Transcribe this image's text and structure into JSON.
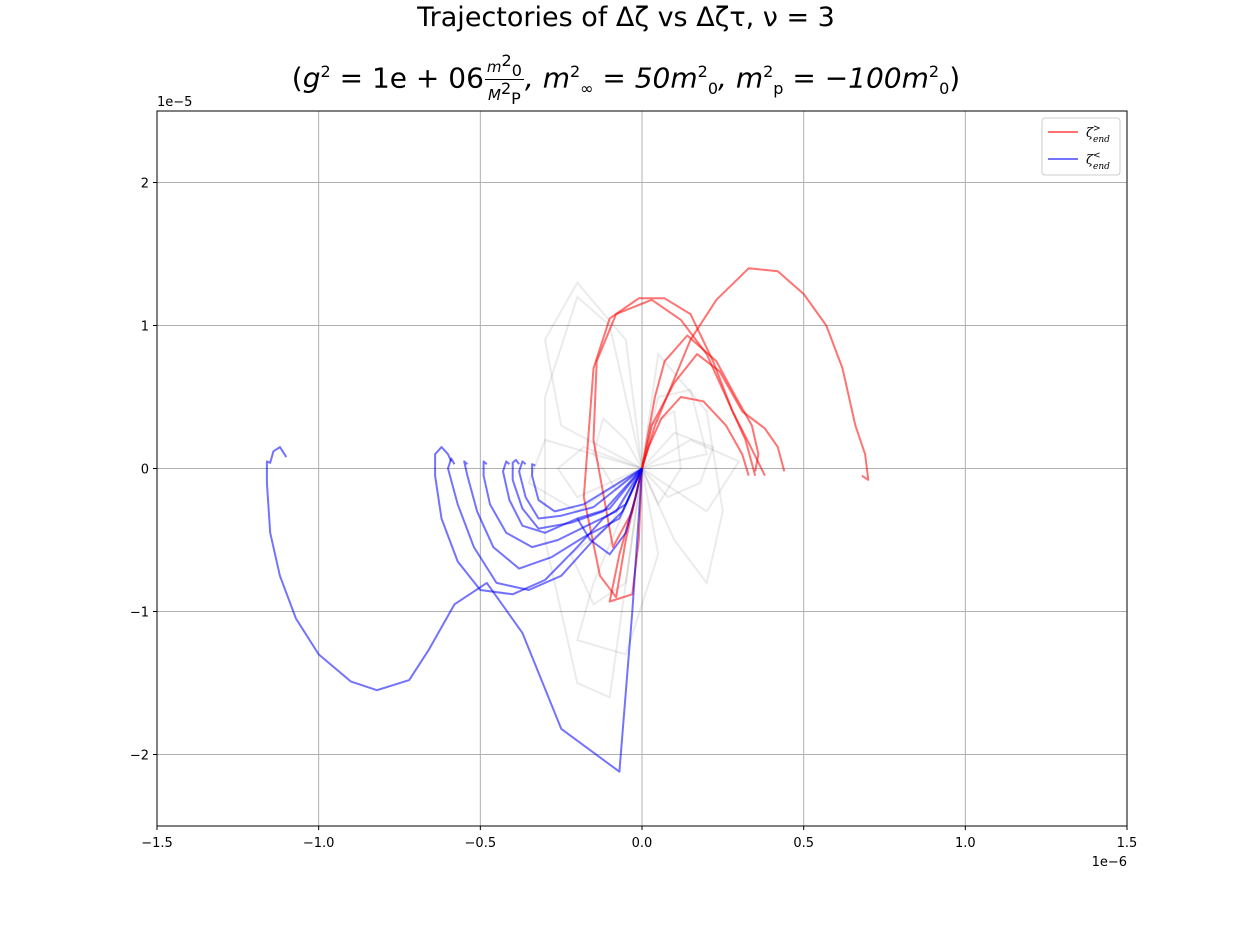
{
  "chart_data": {
    "type": "line",
    "title": "Trajectories of Δζ vs Δζτ, ν = 3",
    "subtitle_parts": {
      "open": "(",
      "g2_lhs": "g",
      "g2_eq": " = 1e + 06",
      "frac_num": "m",
      "frac_den": "M",
      "minf_lhs": ", m",
      "minf_rhs": " = 50m",
      "mp_lhs": ", m",
      "mp_rhs": " = −100m",
      "close": ")"
    },
    "xlim": [
      -1.5e-06,
      1.5e-06
    ],
    "ylim": [
      -2.5e-05,
      2.5e-05
    ],
    "x_multiplier": "1e−6",
    "y_multiplier": "1e−5",
    "x_ticks": [
      -1.5e-06,
      -1e-06,
      -5e-07,
      0.0,
      5e-07,
      1e-06,
      1.5e-06
    ],
    "x_tick_labels": [
      "−1.5",
      "−1.0",
      "−0.5",
      "0.0",
      "0.5",
      "1.0",
      "1.5"
    ],
    "y_ticks": [
      -2e-05,
      -1e-05,
      0,
      1e-05,
      2e-05
    ],
    "y_tick_labels": [
      "−2",
      "−1",
      "0",
      "1",
      "2"
    ],
    "grid": true,
    "legend_position": "top-right",
    "legend": [
      {
        "label": "ζ",
        "sup": ">",
        "sub": "end",
        "color": "#ff0000"
      },
      {
        "label": "ζ",
        "sup": "<",
        "sub": "end",
        "color": "#0000ff"
      }
    ],
    "colors": {
      "red_series": "#ff0000",
      "blue_series": "#0000ff",
      "gray_series": "#000000",
      "grid": "#b0b0b0"
    },
    "series": [
      {
        "group": "end-gt",
        "color": "#ff0000",
        "points": [
          [
            0,
            0
          ],
          [
            -5e-08,
            -5e-06
          ],
          [
            -8e-08,
            -9e-06
          ],
          [
            -1.3e-07,
            -7.5e-06
          ],
          [
            -1.8e-07,
            -2e-06
          ],
          [
            -1.5e-07,
            7e-06
          ],
          [
            -1e-07,
            1.05e-05
          ],
          [
            -1e-08,
            1.19e-05
          ],
          [
            7e-08,
            1.19e-05
          ],
          [
            1.5e-07,
            1.08e-05
          ],
          [
            2.2e-07,
            7.5e-06
          ],
          [
            2.8e-07,
            4e-06
          ],
          [
            3.3e-07,
            1.8e-06
          ],
          [
            3.8e-07,
            -5e-07
          ]
        ]
      },
      {
        "group": "end-gt",
        "color": "#ff0000",
        "points": [
          [
            0,
            0
          ],
          [
            -3e-08,
            -3e-06
          ],
          [
            -9e-08,
            -5.5e-06
          ],
          [
            -1.5e-07,
            2e-06
          ],
          [
            -1.4e-07,
            7.5e-06
          ],
          [
            -8e-08,
            1.08e-05
          ],
          [
            3e-08,
            1.18e-05
          ],
          [
            1.2e-07,
            1.04e-05
          ],
          [
            2e-07,
            8e-06
          ],
          [
            2.7e-07,
            4.5e-06
          ],
          [
            3.2e-07,
            2e-06
          ],
          [
            3.5e-07,
            -5e-07
          ]
        ]
      },
      {
        "group": "end-gt",
        "color": "#ff0000",
        "points": [
          [
            0,
            0
          ],
          [
            4e-08,
            3e-06
          ],
          [
            1.5e-07,
            9e-06
          ],
          [
            2.3e-07,
            1.18e-05
          ],
          [
            3.3e-07,
            1.4e-05
          ],
          [
            4.2e-07,
            1.38e-05
          ],
          [
            5e-07,
            1.22e-05
          ],
          [
            5.7e-07,
            1e-05
          ],
          [
            6.2e-07,
            7e-06
          ],
          [
            6.6e-07,
            3e-06
          ],
          [
            6.9e-07,
            1e-06
          ],
          [
            7e-07,
            -8e-07
          ],
          [
            6.8e-07,
            -5e-07
          ]
        ]
      },
      {
        "group": "end-gt",
        "color": "#ff0000",
        "points": [
          [
            0,
            0
          ],
          [
            2e-08,
            2.5e-06
          ],
          [
            4e-08,
            5e-06
          ],
          [
            7e-08,
            7.5e-06
          ],
          [
            1.4e-07,
            9.3e-06
          ],
          [
            2.3e-07,
            7.5e-06
          ],
          [
            2.9e-07,
            5e-06
          ],
          [
            3.4e-07,
            3e-06
          ],
          [
            3.6e-07,
            1e-06
          ],
          [
            3.5e-07,
            -2e-07
          ]
        ]
      },
      {
        "group": "end-gt",
        "color": "#ff0000",
        "points": [
          [
            0,
            0
          ],
          [
            3e-08,
            3e-06
          ],
          [
            1e-07,
            6e-06
          ],
          [
            1.7e-07,
            8e-06
          ],
          [
            2.4e-07,
            6.8e-06
          ],
          [
            3.1e-07,
            4e-06
          ],
          [
            3.8e-07,
            2.8e-06
          ],
          [
            4.2e-07,
            1.5e-06
          ],
          [
            4.4e-07,
            -2e-07
          ]
        ]
      },
      {
        "group": "end-gt",
        "color": "#ff0000",
        "points": [
          [
            0,
            0
          ],
          [
            2e-08,
            1.5e-06
          ],
          [
            6e-08,
            3.5e-06
          ],
          [
            1.2e-07,
            5e-06
          ],
          [
            1.9e-07,
            4.7e-06
          ],
          [
            2.6e-07,
            3e-06
          ],
          [
            3.1e-07,
            1e-06
          ],
          [
            3.3e-07,
            -5e-07
          ]
        ]
      },
      {
        "group": "end-gt",
        "color": "#ff0000",
        "points": [
          [
            0,
            0
          ],
          [
            -2e-08,
            -2e-06
          ],
          [
            -7e-08,
            -6e-06
          ],
          [
            -1e-07,
            -9.3e-06
          ],
          [
            -3e-08,
            -8.8e-06
          ],
          [
            -1e-08,
            -5e-06
          ],
          [
            0,
            0
          ]
        ]
      },
      {
        "group": "end-lt",
        "color": "#0000ff",
        "points": [
          [
            0,
            0
          ],
          [
            -3e-08,
            -1e-05
          ],
          [
            -7e-08,
            -2.12e-05
          ],
          [
            -2.5e-07,
            -1.82e-05
          ],
          [
            -3.7e-07,
            -1.15e-05
          ],
          [
            -4.8e-07,
            -8e-06
          ],
          [
            -5.8e-07,
            -9.5e-06
          ],
          [
            -6.6e-07,
            -1.27e-05
          ],
          [
            -7.2e-07,
            -1.48e-05
          ],
          [
            -8.2e-07,
            -1.55e-05
          ],
          [
            -9e-07,
            -1.49e-05
          ],
          [
            -1e-06,
            -1.3e-05
          ],
          [
            -1.07e-06,
            -1.05e-05
          ],
          [
            -1.12e-06,
            -7.5e-06
          ],
          [
            -1.15e-06,
            -4.5e-06
          ],
          [
            -1.16e-06,
            -1e-06
          ],
          [
            -1.16e-06,
            5e-07
          ],
          [
            -1.15e-06,
            4e-07
          ],
          [
            -1.14e-06,
            1.2e-06
          ],
          [
            -1.12e-06,
            1.5e-06
          ],
          [
            -1.1e-06,
            8e-07
          ]
        ]
      },
      {
        "group": "end-lt",
        "color": "#0000ff",
        "points": [
          [
            0,
            0
          ],
          [
            -5e-08,
            -2.5e-06
          ],
          [
            -1.2e-07,
            -3.5e-06
          ],
          [
            -2e-07,
            -5.5e-06
          ],
          [
            -3e-07,
            -7.8e-06
          ],
          [
            -4e-07,
            -8.8e-06
          ],
          [
            -5e-07,
            -8.5e-06
          ],
          [
            -5.7e-07,
            -6.5e-06
          ],
          [
            -6.2e-07,
            -3.5e-06
          ],
          [
            -6.4e-07,
            -5e-07
          ],
          [
            -6.4e-07,
            1e-06
          ],
          [
            -6.2e-07,
            1.5e-06
          ],
          [
            -6e-07,
            1e-06
          ],
          [
            -5.9e-07,
            5e-07
          ]
        ]
      },
      {
        "group": "end-lt",
        "color": "#0000ff",
        "points": [
          [
            0,
            0
          ],
          [
            -6e-08,
            -3e-06
          ],
          [
            -1.5e-07,
            -5e-06
          ],
          [
            -2.5e-07,
            -7.5e-06
          ],
          [
            -3.5e-07,
            -8.5e-06
          ],
          [
            -4.5e-07,
            -8e-06
          ],
          [
            -5.2e-07,
            -5.5e-06
          ],
          [
            -5.7e-07,
            -2.5e-06
          ],
          [
            -6e-07,
            0.0
          ],
          [
            -5.9e-07,
            7e-07
          ],
          [
            -5.8e-07,
            3e-07
          ]
        ]
      },
      {
        "group": "end-lt",
        "color": "#0000ff",
        "points": [
          [
            0,
            0
          ],
          [
            -7e-08,
            -3.5e-06
          ],
          [
            -1.8e-07,
            -4.8e-06
          ],
          [
            -2.8e-07,
            -6.2e-06
          ],
          [
            -3.8e-07,
            -7e-06
          ],
          [
            -4.6e-07,
            -5.5e-06
          ],
          [
            -5.1e-07,
            -3e-06
          ],
          [
            -5.4e-07,
            -5e-07
          ],
          [
            -5.5e-07,
            5e-07
          ],
          [
            -5.4e-07,
            3e-07
          ]
        ]
      },
      {
        "group": "end-lt",
        "color": "#0000ff",
        "points": [
          [
            0,
            0
          ],
          [
            -8e-08,
            -3e-06
          ],
          [
            -1.7e-07,
            -4e-06
          ],
          [
            -2.6e-07,
            -5e-06
          ],
          [
            -3.4e-07,
            -5.5e-06
          ],
          [
            -4.2e-07,
            -4.5e-06
          ],
          [
            -4.7e-07,
            -2.5e-06
          ],
          [
            -4.9e-07,
            -5e-07
          ],
          [
            -4.9e-07,
            5e-07
          ],
          [
            -4.8e-07,
            3e-07
          ]
        ]
      },
      {
        "group": "end-lt",
        "color": "#0000ff",
        "points": [
          [
            0,
            0
          ],
          [
            -1e-07,
            -2.8e-06
          ],
          [
            -2e-07,
            -3.5e-06
          ],
          [
            -3e-07,
            -4.5e-06
          ],
          [
            -3.7e-07,
            -4e-06
          ],
          [
            -4.1e-07,
            -2.2e-06
          ],
          [
            -4.3e-07,
            -2e-07
          ],
          [
            -4.2e-07,
            5e-07
          ],
          [
            -4.1e-07,
            3e-07
          ]
        ]
      },
      {
        "group": "end-lt",
        "color": "#0000ff",
        "points": [
          [
            0,
            0
          ],
          [
            -1.2e-07,
            -3e-06
          ],
          [
            -2.2e-07,
            -3.8e-06
          ],
          [
            -3.2e-07,
            -4.2e-06
          ],
          [
            -3.7e-07,
            -2.8e-06
          ],
          [
            -4e-07,
            -8e-07
          ],
          [
            -4e-07,
            4e-07
          ],
          [
            -3.9e-07,
            6e-07
          ],
          [
            -3.8e-07,
            3e-07
          ]
        ]
      },
      {
        "group": "end-lt",
        "color": "#0000ff",
        "points": [
          [
            0,
            0
          ],
          [
            -1.5e-07,
            -2.7e-06
          ],
          [
            -2.5e-07,
            -3.3e-06
          ],
          [
            -3.2e-07,
            -3.5e-06
          ],
          [
            -3.6e-07,
            -2e-06
          ],
          [
            -3.8e-07,
            -2e-07
          ],
          [
            -3.7e-07,
            5e-07
          ],
          [
            -3.6e-07,
            3e-07
          ]
        ]
      },
      {
        "group": "end-lt",
        "color": "#0000ff",
        "points": [
          [
            0,
            0
          ],
          [
            -1.8e-07,
            -2.5e-06
          ],
          [
            -2.7e-07,
            -3e-06
          ],
          [
            -3.2e-07,
            -2.2e-06
          ],
          [
            -3.4e-07,
            -5e-07
          ],
          [
            -3.4e-07,
            3e-07
          ],
          [
            -3.3e-07,
            2e-07
          ]
        ]
      },
      {
        "group": "end-lt",
        "color": "#0000ff",
        "points": [
          [
            0,
            0
          ],
          [
            -2e-08,
            -2e-06
          ],
          [
            -5e-08,
            -4.5e-06
          ],
          [
            -1e-07,
            -6e-06
          ],
          [
            -1.6e-07,
            -5e-06
          ],
          [
            -2e-07,
            -3.5e-06
          ]
        ]
      }
    ],
    "gray_trajectories": [
      [
        [
          0,
          0
        ],
        [
          -1e-07,
          1e-05
        ],
        [
          -2e-07,
          1.2e-05
        ],
        [
          -3e-07,
          5e-06
        ],
        [
          -3e-07,
          -5e-06
        ],
        [
          -2e-07,
          -1.5e-05
        ],
        [
          -1e-07,
          -1.6e-05
        ],
        [
          0,
          0
        ]
      ],
      [
        [
          0,
          0
        ],
        [
          1e-07,
          -5e-06
        ],
        [
          2e-07,
          -8e-06
        ],
        [
          2.5e-07,
          -3e-06
        ],
        [
          2e-07,
          4e-06
        ],
        [
          5e-08,
          8e-06
        ],
        [
          0,
          0
        ]
      ],
      [
        [
          0,
          0
        ],
        [
          -1.5e-07,
          -8e-06
        ],
        [
          -2e-07,
          -1.2e-05
        ],
        [
          -5e-08,
          -1.3e-05
        ],
        [
          5e-08,
          -6e-06
        ],
        [
          0,
          0
        ]
      ],
      [
        [
          0,
          0
        ],
        [
          -2.5e-07,
          3e-06
        ],
        [
          -3e-07,
          9e-06
        ],
        [
          -2e-07,
          1.3e-05
        ],
        [
          -5e-08,
          9e-06
        ],
        [
          0,
          0
        ]
      ],
      [
        [
          0,
          0
        ],
        [
          1.5e-07,
          2e-06
        ],
        [
          3e-07,
          5e-07
        ],
        [
          2e-07,
          -3e-06
        ],
        [
          0,
          0
        ]
      ],
      [
        [
          0,
          0
        ],
        [
          -2e-07,
          -3e-06
        ],
        [
          -3.5e-07,
          -1e-06
        ],
        [
          -3e-07,
          2e-06
        ],
        [
          0,
          0
        ]
      ],
      [
        [
          0,
          0
        ],
        [
          5e-08,
          5e-06
        ],
        [
          1.5e-07,
          5.5e-06
        ],
        [
          2e-07,
          1e-06
        ],
        [
          0,
          0
        ]
      ],
      [
        [
          0,
          0
        ],
        [
          -1e-07,
          -4e-06
        ],
        [
          -2.2e-07,
          -6e-06
        ],
        [
          -1.5e-07,
          -9.5e-06
        ],
        [
          -5e-08,
          -8e-06
        ],
        [
          0,
          0
        ]
      ],
      [
        [
          0,
          0
        ],
        [
          2e-08,
          3e-06
        ],
        [
          1e-07,
          4e-06
        ],
        [
          1.2e-07,
          0.0
        ],
        [
          5e-08,
          -2.5e-06
        ],
        [
          0,
          0
        ]
      ],
      [
        [
          0,
          0
        ],
        [
          -5e-08,
          2e-06
        ],
        [
          -1.2e-07,
          3.5e-06
        ],
        [
          -1.5e-07,
          1e-06
        ],
        [
          -8e-08,
          -1.5e-06
        ],
        [
          0,
          0
        ]
      ],
      [
        [
          0,
          0
        ],
        [
          8e-08,
          -2e-06
        ],
        [
          1.8e-07,
          -1e-06
        ],
        [
          2.2e-07,
          1.5e-06
        ],
        [
          1e-07,
          2.5e-06
        ],
        [
          0,
          0
        ]
      ],
      [
        [
          0,
          0
        ],
        [
          -1.8e-07,
          1.5e-06
        ],
        [
          -2.6e-07,
          0.0
        ],
        [
          -2e-07,
          -2e-06
        ],
        [
          0,
          0
        ]
      ]
    ]
  }
}
